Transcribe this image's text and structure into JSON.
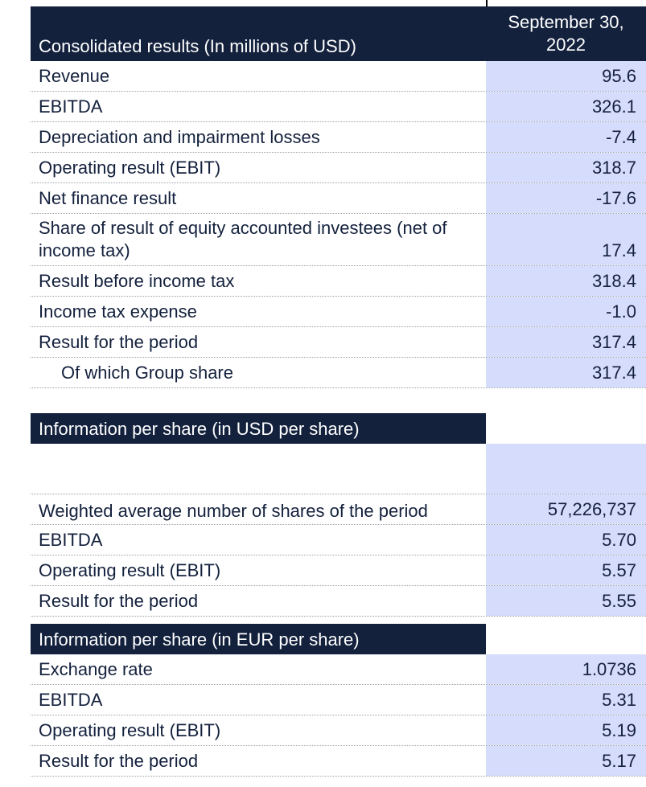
{
  "colors": {
    "header_bg": "#13213d",
    "value_bg": "#d6dcfb",
    "text": "#14213d"
  },
  "section_usd_millions": {
    "title": "Consolidated results (In millions of USD)",
    "column_header": "September 30, 2022",
    "rows": [
      {
        "label": "Revenue",
        "value": "95.6"
      },
      {
        "label": "EBITDA",
        "value": "326.1"
      },
      {
        "label": "Depreciation and impairment losses",
        "value": "-7.4"
      },
      {
        "label": "Operating result (EBIT)",
        "value": "318.7"
      },
      {
        "label": "Net finance result",
        "value": "-17.6"
      },
      {
        "label": "Share of result of equity accounted investees (net of income tax)",
        "value": "17.4"
      },
      {
        "label": "Result before income tax",
        "value": "318.4"
      },
      {
        "label": "Income tax expense",
        "value": "-1.0"
      },
      {
        "label": "Result for the period",
        "value": "317.4"
      },
      {
        "label": "Of which Group share",
        "value": "317.4"
      }
    ]
  },
  "section_usd_per_share": {
    "title": "Information per share (in USD per share)",
    "rows": [
      {
        "label": "Weighted average number of shares of the period",
        "value": "57,226,737"
      },
      {
        "label": "EBITDA",
        "value": "5.70"
      },
      {
        "label": "Operating result (EBIT)",
        "value": "5.57"
      },
      {
        "label": "Result for the period",
        "value": "5.55"
      }
    ]
  },
  "section_eur_per_share": {
    "title": "Information per share (in EUR per share)",
    "rows": [
      {
        "label": "Exchange rate",
        "value": "1.0736"
      },
      {
        "label": "EBITDA",
        "value": "5.31"
      },
      {
        "label": "Operating result (EBIT)",
        "value": "5.19"
      },
      {
        "label": "Result for the period",
        "value": "5.17"
      }
    ]
  }
}
